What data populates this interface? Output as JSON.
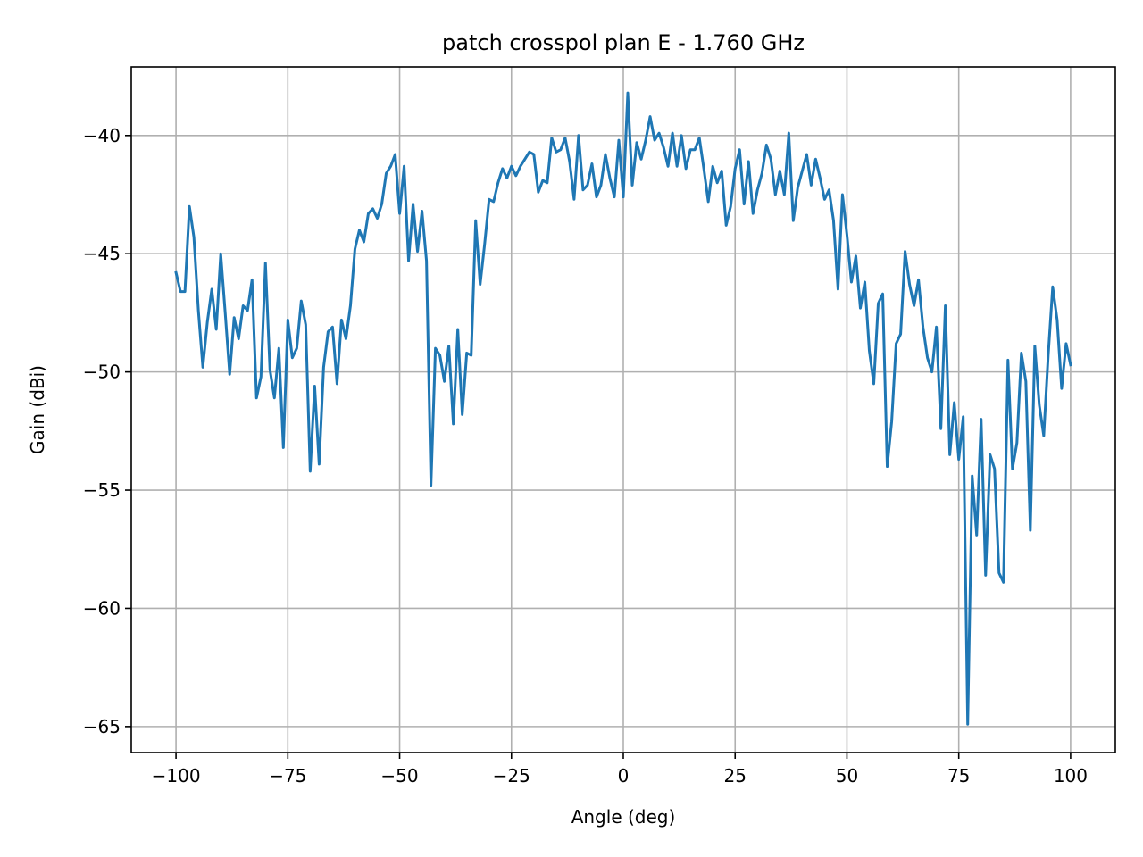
{
  "chart_data": {
    "type": "line",
    "title": "patch crosspol plan E - 1.760 GHz",
    "xlabel": "Angle (deg)",
    "ylabel": "Gain (dBi)",
    "xlim": [
      -110,
      110
    ],
    "ylim": [
      -66.1,
      -37.1
    ],
    "xticks": [
      -100,
      -75,
      -50,
      -25,
      0,
      25,
      50,
      75,
      100
    ],
    "xtick_labels": [
      "−100",
      "−75",
      "−50",
      "−25",
      "0",
      "25",
      "50",
      "75",
      "100"
    ],
    "yticks": [
      -40,
      -45,
      -50,
      -55,
      -60,
      -65
    ],
    "ytick_labels": [
      "−40",
      "−45",
      "−50",
      "−55",
      "−60",
      "−65"
    ],
    "grid": true,
    "series": [
      {
        "color": "#1f77b4",
        "x": [
          -100,
          -99,
          -98,
          -97,
          -96,
          -95,
          -94,
          -93,
          -92,
          -91,
          -90,
          -89,
          -88,
          -87,
          -86,
          -85,
          -84,
          -83,
          -82,
          -81,
          -80,
          -79,
          -78,
          -77,
          -76,
          -75,
          -74,
          -73,
          -72,
          -71,
          -70,
          -69,
          -68,
          -67,
          -66,
          -65,
          -64,
          -63,
          -62,
          -61,
          -60,
          -59,
          -58,
          -57,
          -56,
          -55,
          -54,
          -53,
          -52,
          -51,
          -50,
          -49,
          -48,
          -47,
          -46,
          -45,
          -44,
          -43,
          -42,
          -41,
          -40,
          -39,
          -38,
          -37,
          -36,
          -35,
          -34,
          -33,
          -32,
          -31,
          -30,
          -29,
          -28,
          -27,
          -26,
          -25,
          -24,
          -23,
          -22,
          -21,
          -20,
          -19,
          -18,
          -17,
          -16,
          -15,
          -14,
          -13,
          -12,
          -11,
          -10,
          -9,
          -8,
          -7,
          -6,
          -5,
          -4,
          -3,
          -2,
          -1,
          0,
          1,
          2,
          3,
          4,
          5,
          6,
          7,
          8,
          9,
          10,
          11,
          12,
          13,
          14,
          15,
          16,
          17,
          18,
          19,
          20,
          21,
          22,
          23,
          24,
          25,
          26,
          27,
          28,
          29,
          30,
          31,
          32,
          33,
          34,
          35,
          36,
          37,
          38,
          39,
          40,
          41,
          42,
          43,
          44,
          45,
          46,
          47,
          48,
          49,
          50,
          51,
          52,
          53,
          54,
          55,
          56,
          57,
          58,
          59,
          60,
          61,
          62,
          63,
          64,
          65,
          66,
          67,
          68,
          69,
          70,
          71,
          72,
          73,
          74,
          75,
          76,
          77,
          78,
          79,
          80,
          81,
          82,
          83,
          84,
          85,
          86,
          87,
          88,
          89,
          90,
          91,
          92,
          93,
          94,
          95,
          96,
          97,
          98,
          99,
          100
        ],
        "y": [
          -45.8,
          -46.6,
          -46.6,
          -43.0,
          -44.3,
          -47.4,
          -49.8,
          -47.9,
          -46.5,
          -48.2,
          -45.0,
          -47.5,
          -50.1,
          -47.7,
          -48.6,
          -47.2,
          -47.4,
          -46.1,
          -51.1,
          -50.2,
          -45.4,
          -49.9,
          -51.1,
          -49.0,
          -53.2,
          -47.8,
          -49.4,
          -49.0,
          -47.0,
          -48.0,
          -54.2,
          -50.6,
          -53.9,
          -49.8,
          -48.3,
          -48.1,
          -50.5,
          -47.8,
          -48.6,
          -47.2,
          -44.8,
          -44.0,
          -44.5,
          -43.3,
          -43.1,
          -43.5,
          -42.9,
          -41.6,
          -41.3,
          -40.8,
          -43.3,
          -41.3,
          -45.3,
          -42.9,
          -44.9,
          -43.2,
          -45.3,
          -54.8,
          -49.0,
          -49.3,
          -50.4,
          -48.9,
          -52.2,
          -48.2,
          -51.8,
          -49.2,
          -49.3,
          -43.6,
          -46.3,
          -44.6,
          -42.7,
          -42.8,
          -42.0,
          -41.4,
          -41.8,
          -41.3,
          -41.7,
          -41.3,
          -41.0,
          -40.7,
          -40.8,
          -42.4,
          -41.9,
          -42.0,
          -40.1,
          -40.7,
          -40.6,
          -40.1,
          -41.1,
          -42.7,
          -40.0,
          -42.3,
          -42.1,
          -41.2,
          -42.6,
          -42.1,
          -40.8,
          -41.8,
          -42.6,
          -40.2,
          -42.6,
          -38.2,
          -42.1,
          -40.3,
          -41.0,
          -40.2,
          -39.2,
          -40.2,
          -39.9,
          -40.5,
          -41.3,
          -39.9,
          -41.3,
          -40.0,
          -41.4,
          -40.6,
          -40.6,
          -40.1,
          -41.4,
          -42.8,
          -41.3,
          -42.0,
          -41.5,
          -43.8,
          -43.0,
          -41.4,
          -40.6,
          -42.9,
          -41.1,
          -43.3,
          -42.3,
          -41.6,
          -40.4,
          -41.0,
          -42.5,
          -41.5,
          -42.5,
          -39.9,
          -43.6,
          -42.2,
          -41.5,
          -40.8,
          -42.1,
          -41.0,
          -41.8,
          -42.7,
          -42.3,
          -43.6,
          -46.5,
          -42.5,
          -44.2,
          -46.2,
          -45.1,
          -47.3,
          -46.2,
          -49.1,
          -50.5,
          -47.1,
          -46.7,
          -54.0,
          -52.1,
          -48.8,
          -48.4,
          -44.9,
          -46.3,
          -47.2,
          -46.1,
          -48.1,
          -49.4,
          -50.0,
          -48.1,
          -52.4,
          -47.2,
          -53.5,
          -51.3,
          -53.7,
          -51.9,
          -64.9,
          -54.4,
          -56.9,
          -52.0,
          -58.6,
          -53.5,
          -54.1,
          -58.5,
          -58.9,
          -49.5,
          -54.1,
          -53.0,
          -49.2,
          -50.4,
          -56.7,
          -48.9,
          -51.4,
          -52.7,
          -49.3,
          -46.4,
          -47.8,
          -50.7,
          -48.8,
          -49.7
        ]
      }
    ]
  }
}
